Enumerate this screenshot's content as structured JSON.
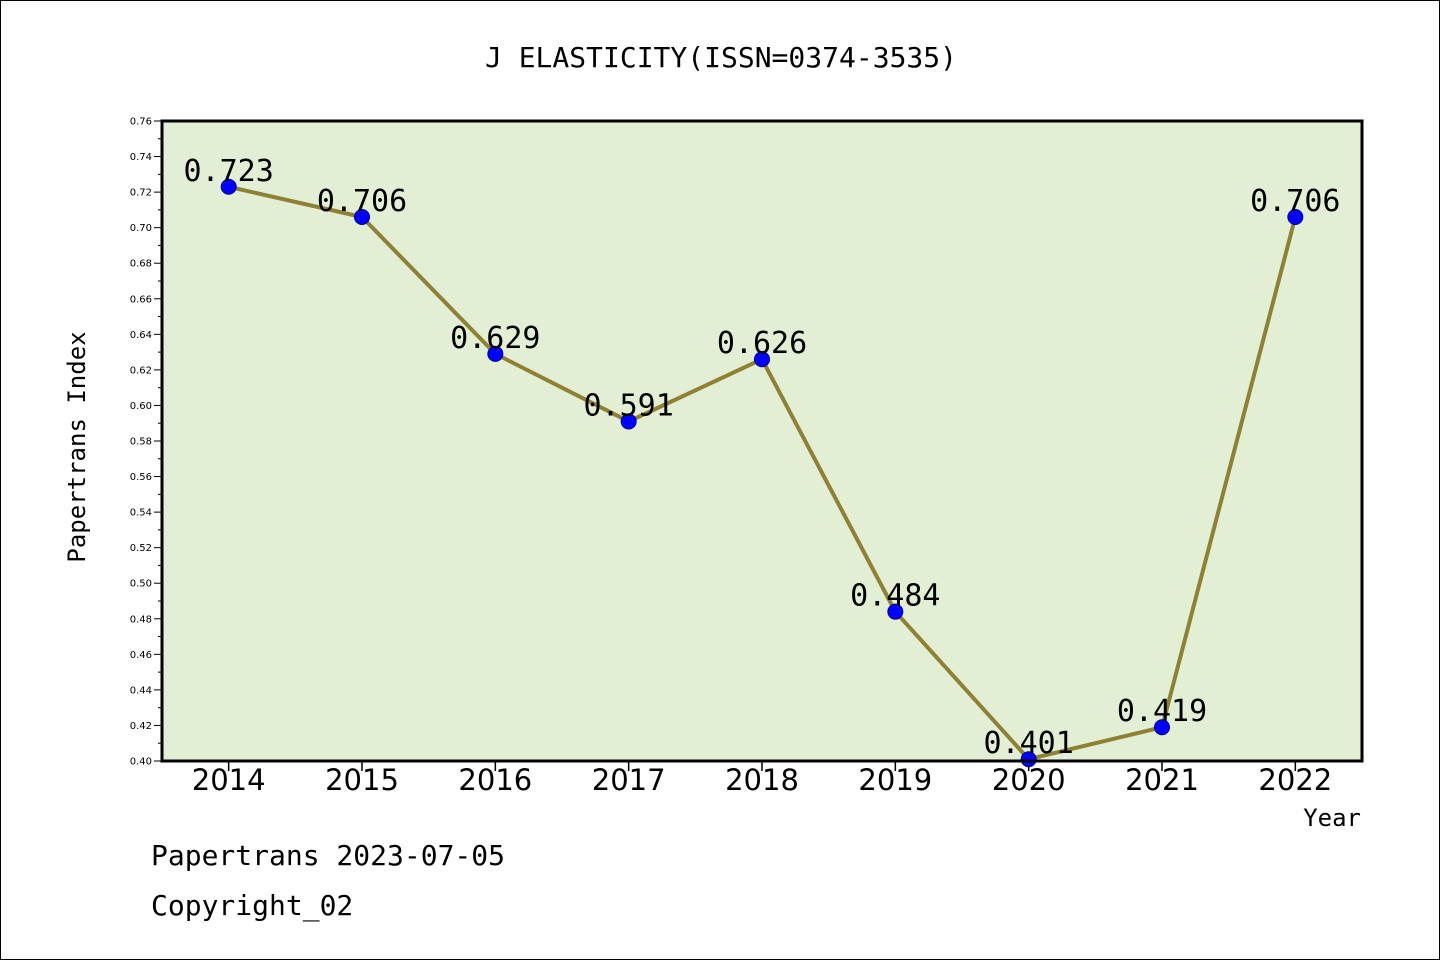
{
  "chart_data": {
    "type": "line",
    "title": "J ELASTICITY(ISSN=0374-3535)",
    "xlabel": "Year",
    "ylabel": "Papertrans Index",
    "categories": [
      "2014",
      "2015",
      "2016",
      "2017",
      "2018",
      "2019",
      "2020",
      "2021",
      "2022"
    ],
    "values": [
      0.723,
      0.706,
      0.629,
      0.591,
      0.626,
      0.484,
      0.401,
      0.419,
      0.706
    ],
    "data_labels": [
      "0.723",
      "0.706",
      "0.629",
      "0.591",
      "0.626",
      "0.484",
      "0.401",
      "0.419",
      "0.706"
    ],
    "ylim": [
      0.4,
      0.76
    ],
    "yticks": [
      "0.40",
      "0.42",
      "0.44",
      "0.46",
      "0.48",
      "0.50",
      "0.52",
      "0.54",
      "0.56",
      "0.58",
      "0.60",
      "0.62",
      "0.64",
      "0.66",
      "0.68",
      "0.70",
      "0.72",
      "0.74",
      "0.76"
    ],
    "grid": false,
    "legend": "none",
    "colors": {
      "plot_background": "#e2efd5",
      "line": "#8f8133",
      "marker": "#0000ff",
      "marker_edge": "#00008b"
    }
  },
  "footer": {
    "line1": "Papertrans 2023-07-05",
    "line2": "Copyright_02"
  }
}
